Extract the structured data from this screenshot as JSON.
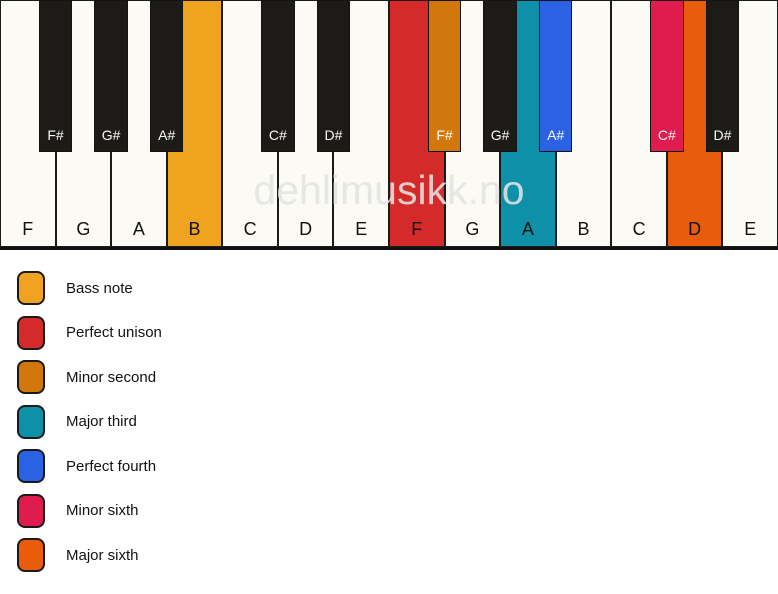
{
  "page": {
    "background": "#ffffff"
  },
  "watermark": {
    "text": "dehlimusikk.no"
  },
  "keyboard": {
    "colors": {
      "white_key": "#FCFAF4",
      "black_key": "#1C1B18",
      "key_border": "#1a1a1a",
      "white_key_label": "#111111",
      "black_key_label": "#FAFAFA"
    },
    "white_keys": [
      {
        "note": "F"
      },
      {
        "note": "G"
      },
      {
        "note": "A"
      },
      {
        "note": "B",
        "highlight": "bass_note"
      },
      {
        "note": "C"
      },
      {
        "note": "D"
      },
      {
        "note": "E"
      },
      {
        "note": "F",
        "highlight": "perfect_unison"
      },
      {
        "note": "G"
      },
      {
        "note": "A",
        "highlight": "major_third"
      },
      {
        "note": "B"
      },
      {
        "note": "C"
      },
      {
        "note": "D",
        "highlight": "major_sixth"
      },
      {
        "note": "E"
      }
    ],
    "black_keys": [
      {
        "note": "F#",
        "left_white_index": 0
      },
      {
        "note": "G#",
        "left_white_index": 1
      },
      {
        "note": "A#",
        "left_white_index": 2
      },
      {
        "note": "C#",
        "left_white_index": 4
      },
      {
        "note": "D#",
        "left_white_index": 5
      },
      {
        "note": "F#",
        "left_white_index": 7,
        "highlight": "minor_second"
      },
      {
        "note": "G#",
        "left_white_index": 8
      },
      {
        "note": "A#",
        "left_white_index": 9,
        "highlight": "perfect_fourth"
      },
      {
        "note": "C#",
        "left_white_index": 11,
        "highlight": "minor_sixth"
      },
      {
        "note": "D#",
        "left_white_index": 12
      }
    ]
  },
  "highlights": {
    "bass_note": {
      "label": "Bass note",
      "color": "#F0A31E"
    },
    "perfect_unison": {
      "label": "Perfect unison",
      "color": "#D42A2A"
    },
    "minor_second": {
      "label": "Minor second",
      "color": "#D2770B"
    },
    "major_third": {
      "label": "Major third",
      "color": "#0D90A8"
    },
    "perfect_fourth": {
      "label": "Perfect fourth",
      "color": "#2B62E3"
    },
    "minor_sixth": {
      "label": "Minor sixth",
      "color": "#E01C4E"
    },
    "major_sixth": {
      "label": "Major sixth",
      "color": "#E85C0B"
    }
  },
  "legend": {
    "order": [
      "bass_note",
      "perfect_unison",
      "minor_second",
      "major_third",
      "perfect_fourth",
      "minor_sixth",
      "major_sixth"
    ]
  }
}
